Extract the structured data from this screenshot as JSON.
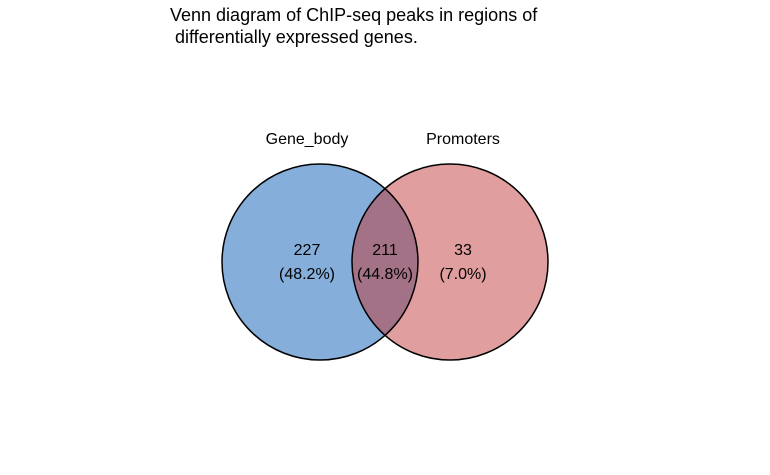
{
  "title_line1": "Venn diagram of ChIP-seq peaks in regions of",
  "title_line2": " differentially expressed genes.",
  "sets": [
    {
      "name": "Gene_body",
      "color": "#85AEDB"
    },
    {
      "name": "Promoters",
      "color": "#E09E9F"
    }
  ],
  "overlap_color": "#A47286",
  "regions": {
    "left_only": {
      "count": "227",
      "percent": "(48.2%)"
    },
    "both": {
      "count": "211",
      "percent": "(44.8%)"
    },
    "right_only": {
      "count": "33",
      "percent": "(7.0%)"
    }
  }
}
